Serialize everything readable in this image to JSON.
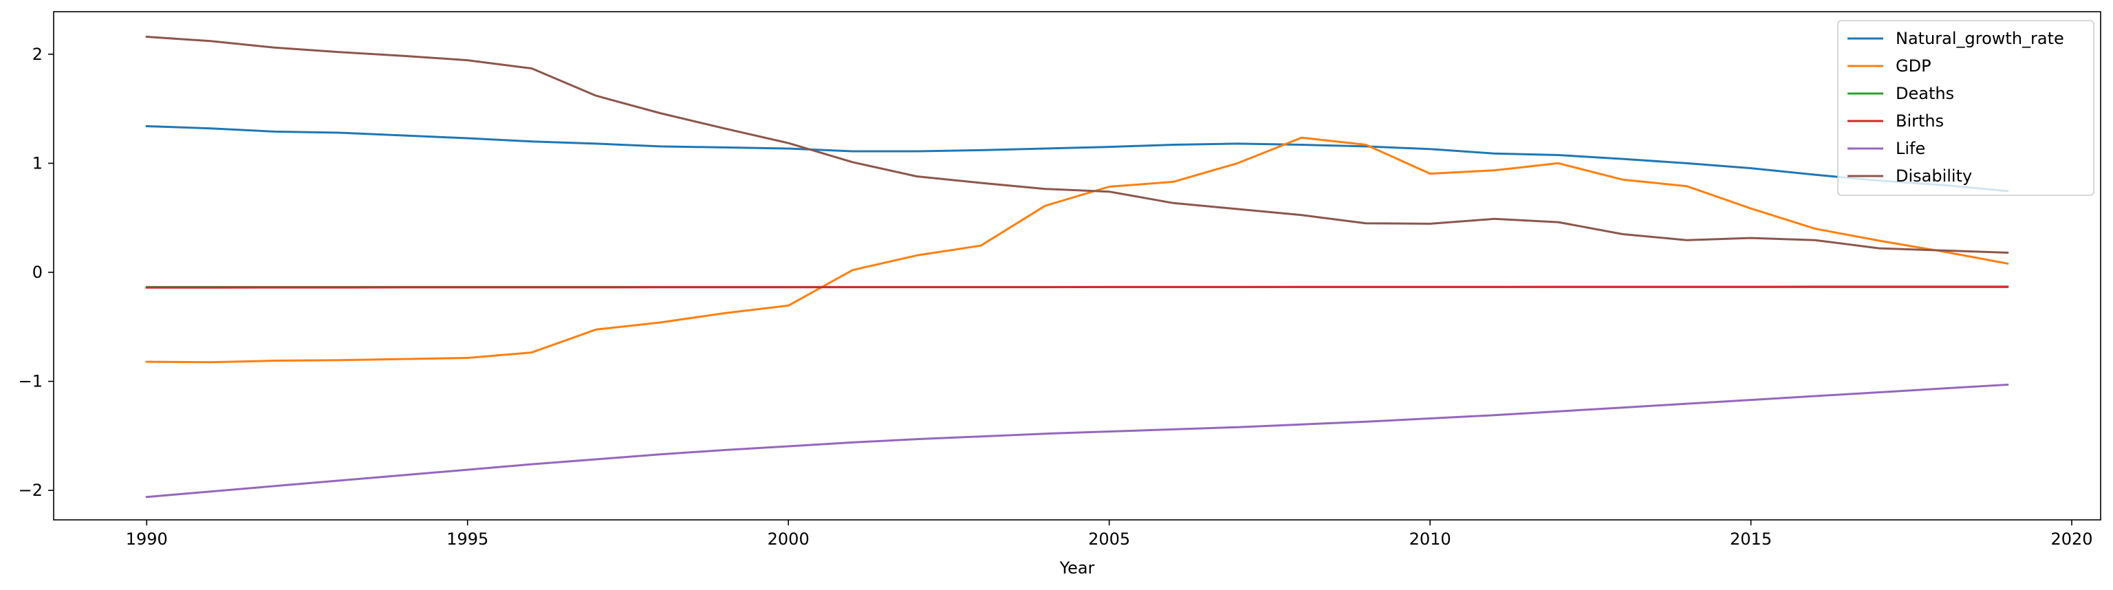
{
  "chart_data": {
    "type": "line",
    "title": "",
    "xlabel": "Year",
    "ylabel": "",
    "xlim": [
      1988.55,
      2020.45
    ],
    "ylim": [
      -2.27,
      2.39
    ],
    "xticks": [
      1990,
      1995,
      2000,
      2005,
      2010,
      2015,
      2020
    ],
    "yticks": [
      -2,
      -1,
      0,
      1,
      2
    ],
    "ytick_labels": [
      "−2",
      "−1",
      "0",
      "1",
      "2"
    ],
    "legend_position": "top-right",
    "x": [
      1990,
      1991,
      1992,
      1993,
      1994,
      1995,
      1996,
      1997,
      1998,
      1999,
      2000,
      2001,
      2002,
      2003,
      2004,
      2005,
      2006,
      2007,
      2008,
      2009,
      2010,
      2011,
      2012,
      2013,
      2014,
      2015,
      2016,
      2017,
      2018,
      2019
    ],
    "series": [
      {
        "name": "Natural_growth_rate",
        "color": "#1f77b4",
        "values": [
          1.34,
          1.32,
          1.29,
          1.28,
          1.255,
          1.23,
          1.2,
          1.18,
          1.155,
          1.145,
          1.135,
          1.11,
          1.11,
          1.12,
          1.135,
          1.15,
          1.17,
          1.18,
          1.17,
          1.155,
          1.13,
          1.09,
          1.075,
          1.04,
          1.0,
          0.955,
          0.895,
          0.84,
          0.8,
          0.745
        ]
      },
      {
        "name": "GDP",
        "color": "#ff7f0e",
        "values": [
          -0.82,
          -0.825,
          -0.81,
          -0.805,
          -0.795,
          -0.785,
          -0.735,
          -0.525,
          -0.46,
          -0.375,
          -0.305,
          0.02,
          0.155,
          0.245,
          0.61,
          0.785,
          0.83,
          1.0,
          1.235,
          1.17,
          0.905,
          0.935,
          1.0,
          0.85,
          0.79,
          0.585,
          0.4,
          0.29,
          0.19,
          0.08
        ]
      },
      {
        "name": "Deaths",
        "color": "#2ca02c",
        "values": [
          -0.135,
          -0.135,
          -0.135,
          -0.135,
          -0.135,
          -0.135,
          -0.135,
          -0.135,
          -0.135,
          -0.135,
          -0.135,
          -0.135,
          -0.135,
          -0.135,
          -0.135,
          -0.135,
          -0.135,
          -0.135,
          -0.135,
          -0.135,
          -0.135,
          -0.135,
          -0.135,
          -0.135,
          -0.135,
          -0.135,
          -0.135,
          -0.135,
          -0.135,
          -0.135
        ]
      },
      {
        "name": "Births",
        "color": "#d62728",
        "values": [
          -0.14,
          -0.14,
          -0.139,
          -0.139,
          -0.138,
          -0.138,
          -0.138,
          -0.138,
          -0.137,
          -0.137,
          -0.137,
          -0.136,
          -0.136,
          -0.136,
          -0.136,
          -0.135,
          -0.135,
          -0.135,
          -0.134,
          -0.134,
          -0.134,
          -0.134,
          -0.133,
          -0.133,
          -0.133,
          -0.133,
          -0.132,
          -0.132,
          -0.132,
          -0.132
        ]
      },
      {
        "name": "Life",
        "color": "#9467bd",
        "values": [
          -2.06,
          -2.01,
          -1.96,
          -1.91,
          -1.86,
          -1.81,
          -1.76,
          -1.715,
          -1.67,
          -1.63,
          -1.595,
          -1.56,
          -1.53,
          -1.505,
          -1.48,
          -1.46,
          -1.44,
          -1.42,
          -1.395,
          -1.37,
          -1.34,
          -1.31,
          -1.275,
          -1.24,
          -1.205,
          -1.17,
          -1.135,
          -1.1,
          -1.065,
          -1.03
        ]
      },
      {
        "name": "Disability",
        "color": "#8c564b",
        "values": [
          2.16,
          2.12,
          2.06,
          2.02,
          1.985,
          1.945,
          1.87,
          1.62,
          1.46,
          1.32,
          1.185,
          1.01,
          0.88,
          0.82,
          0.765,
          0.74,
          0.635,
          0.58,
          0.525,
          0.45,
          0.445,
          0.49,
          0.46,
          0.35,
          0.295,
          0.315,
          0.295,
          0.22,
          0.2,
          0.18
        ]
      }
    ]
  }
}
